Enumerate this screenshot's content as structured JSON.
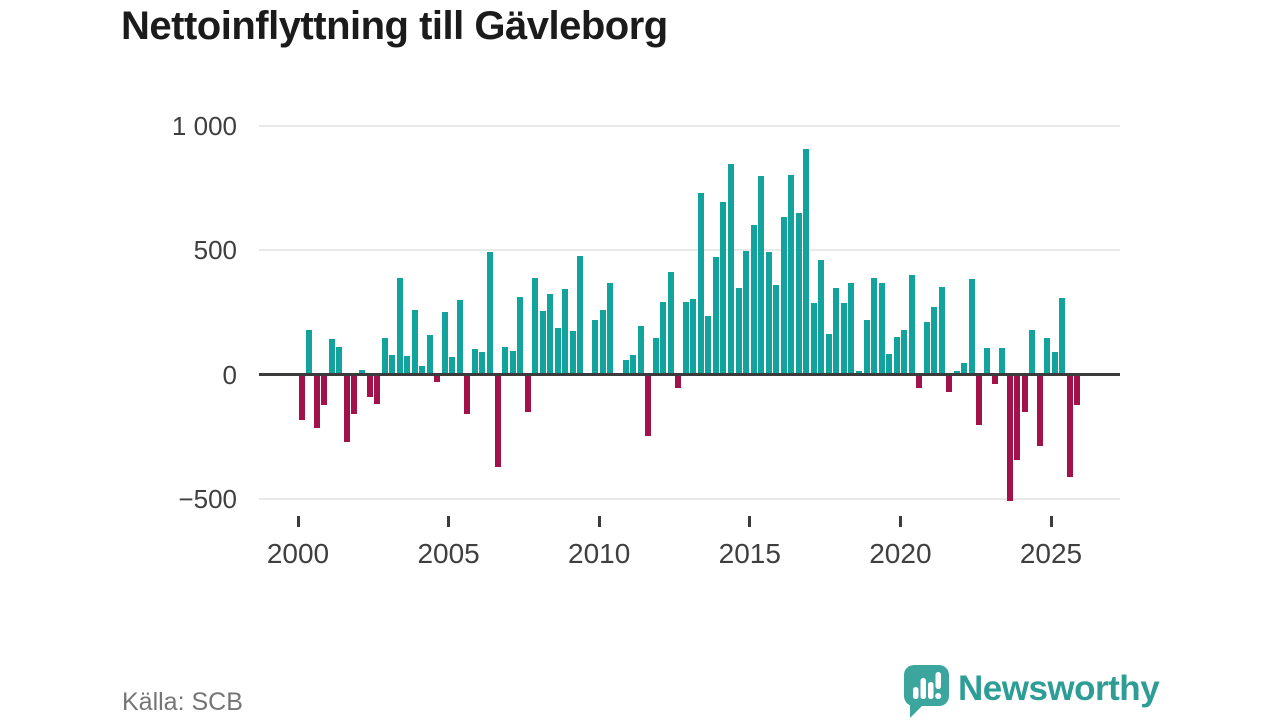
{
  "page": {
    "title": "Nettoinflyttning till Gävleborg"
  },
  "footer": {
    "source": "Källa: SCB",
    "logo_text": "Newsworthy"
  },
  "chart_data": {
    "type": "bar",
    "title": "Nettoinflyttning till Gävleborg",
    "frequency": "quarterly",
    "x_start_year": 2000,
    "quarters_per_year": 4,
    "values": [
      -181,
      179,
      -213,
      -124,
      143,
      112,
      -271,
      -158,
      19,
      -91,
      -119,
      148,
      80,
      386,
      75,
      260,
      36,
      158,
      -29,
      252,
      70,
      298,
      -160,
      103,
      90,
      493,
      -371,
      109,
      93,
      312,
      -151,
      387,
      256,
      325,
      187,
      343,
      173,
      475,
      5,
      217,
      261,
      368,
      5,
      60,
      80,
      194,
      -248,
      146,
      292,
      411,
      -54,
      292,
      303,
      727,
      236,
      472,
      693,
      847,
      348,
      495,
      599,
      796,
      492,
      358,
      633,
      800,
      650,
      905,
      288,
      461,
      164,
      349,
      288,
      369,
      13,
      217,
      389,
      369,
      83,
      150,
      180,
      398,
      -54,
      212,
      271,
      351,
      -71,
      13,
      47,
      382,
      -201,
      105,
      -38,
      107,
      -510,
      -345,
      -150,
      180,
      -287,
      145,
      91,
      306,
      -413,
      -121
    ],
    "xticks": [
      2000,
      2005,
      2010,
      2015,
      2020,
      2025
    ],
    "yticks": [
      {
        "label": "1 000",
        "value": 1000
      },
      {
        "label": "500",
        "value": 500
      },
      {
        "label": "0",
        "value": 0
      },
      {
        "label": "−500",
        "value": -500
      }
    ],
    "ylim": [
      -560,
      1060
    ],
    "legend": "none",
    "grid": "horizontal",
    "colors": {
      "positive": "#12a39d",
      "negative": "#a1114a",
      "grid": "#e9e9e9",
      "zero_line": "#3b3b3b",
      "axis_text": "#3f3f3f",
      "logo_teal": "#3ca59e"
    }
  }
}
